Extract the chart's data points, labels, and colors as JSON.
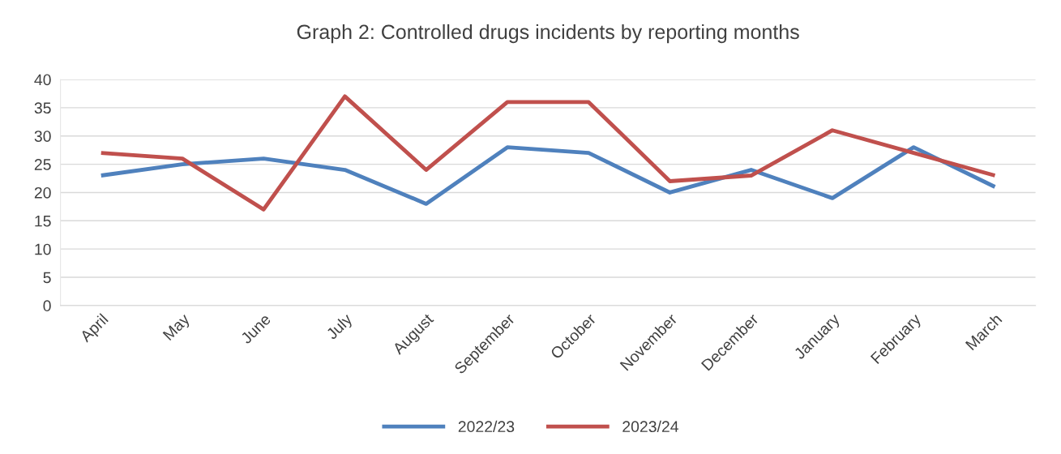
{
  "chart_data": {
    "type": "line",
    "title": "Graph 2: Controlled drugs incidents by reporting months",
    "categories": [
      "April",
      "May",
      "June",
      "July",
      "August",
      "September",
      "October",
      "November",
      "December",
      "January",
      "February",
      "March"
    ],
    "series": [
      {
        "name": "2022/23",
        "color": "#4f81bd",
        "values": [
          23,
          25,
          26,
          24,
          18,
          28,
          27,
          20,
          24,
          19,
          28,
          21
        ]
      },
      {
        "name": "2023/24",
        "color": "#c0504d",
        "values": [
          27,
          26,
          17,
          37,
          24,
          36,
          36,
          22,
          23,
          31,
          27,
          23
        ]
      }
    ],
    "ylim": [
      0,
      40
    ],
    "yticks": [
      0,
      5,
      10,
      15,
      20,
      25,
      30,
      35,
      40
    ],
    "grid": "y",
    "legend": "bottom",
    "marker": "none",
    "line_style": "solid"
  }
}
